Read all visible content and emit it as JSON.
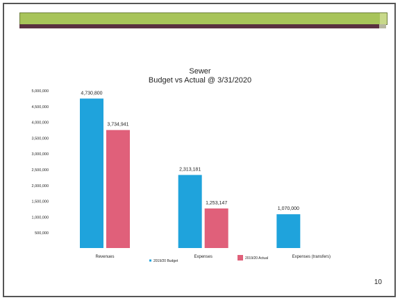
{
  "slide": {
    "page_number": "10",
    "band_colors": {
      "top": "#a8c45a",
      "bottom": "#5a3040"
    }
  },
  "chart_data": {
    "type": "bar",
    "title": "Sewer",
    "subtitle": "Budget vs Actual @ 3/31/2020",
    "categories": [
      "Revenues",
      "Expenses",
      "Expenses (transfers)"
    ],
    "series": [
      {
        "name": "2019/20 Budget",
        "color": "#1fa3dc",
        "values": [
          4730800,
          2313181,
          1070000
        ],
        "labels": [
          "4,730,800",
          "2,313,181",
          "1,070,000"
        ]
      },
      {
        "name": "2019/20 Actual",
        "color": "#e0607a",
        "values": [
          3734941,
          1253147,
          null
        ],
        "labels": [
          "3,734,941",
          "1,253,147",
          ""
        ]
      }
    ],
    "y_ticks": [
      0,
      500000,
      1000000,
      1500000,
      2000000,
      2500000,
      3000000,
      3500000,
      4000000,
      4500000,
      5000000
    ],
    "y_tick_labels": [
      "",
      "500,000",
      "1,000,000",
      "1,500,000",
      "2,000,000",
      "2,500,000",
      "3,000,000",
      "3,500,000",
      "4,000,000",
      "4,500,000",
      "5,000,000"
    ],
    "ylim": [
      0,
      5000000
    ],
    "grid": false,
    "legend": "bottom"
  }
}
